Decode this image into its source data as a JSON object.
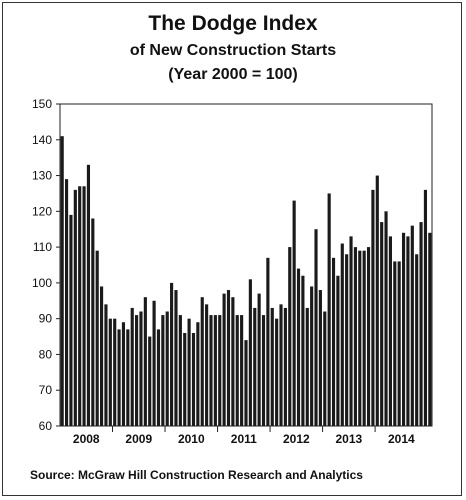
{
  "chart_data": {
    "type": "bar",
    "title": "The Dodge Index",
    "subtitle": "of New Construction Starts",
    "subtitle2": "(Year 2000 = 100)",
    "source": "Source:  McGraw Hill Construction Research and Analytics",
    "xlabel": "",
    "ylabel": "",
    "ylim": [
      60,
      150
    ],
    "yticks": [
      60,
      70,
      80,
      90,
      100,
      110,
      120,
      130,
      140,
      150
    ],
    "grid": false,
    "year_labels": [
      "2008",
      "2009",
      "2010",
      "2011",
      "2012",
      "2013",
      "2014"
    ],
    "bar_color": "#1a1a1a",
    "values": [
      141,
      129,
      119,
      126,
      127,
      127,
      133,
      118,
      109,
      99,
      94,
      90,
      90,
      87,
      89,
      87,
      93,
      91,
      92,
      96,
      85,
      95,
      87,
      91,
      92,
      100,
      98,
      91,
      86,
      90,
      86,
      89,
      96,
      94,
      91,
      91,
      91,
      97,
      98,
      96,
      91,
      91,
      84,
      101,
      93,
      97,
      91,
      107,
      93,
      90,
      94,
      93,
      110,
      123,
      104,
      102,
      93,
      99,
      115,
      98,
      92,
      125,
      107,
      102,
      111,
      108,
      113,
      110,
      109,
      109,
      110,
      126,
      130,
      117,
      120,
      113,
      106,
      106,
      114,
      113,
      116,
      108,
      117,
      126,
      114
    ]
  }
}
